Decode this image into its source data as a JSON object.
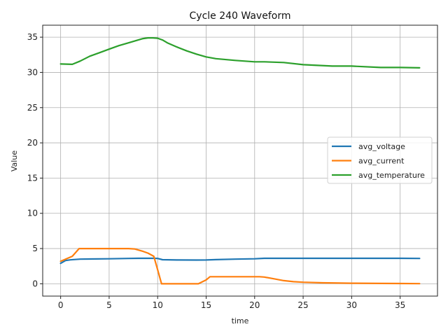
{
  "chart_data": {
    "type": "line",
    "title": "Cycle 240 Waveform",
    "xlabel": "time",
    "ylabel": "Value",
    "xlim": [
      -1.85,
      38.85
    ],
    "ylim": [
      -1.75,
      36.7
    ],
    "xticks": [
      0,
      5,
      10,
      15,
      20,
      25,
      30,
      35
    ],
    "yticks": [
      0,
      5,
      10,
      15,
      20,
      25,
      30,
      35
    ],
    "grid": true,
    "legend_position": "center-right",
    "series": [
      {
        "name": "avg_voltage",
        "color": "#1f77b4",
        "x": [
          0,
          0.5,
          1,
          2,
          3,
          5,
          7,
          8,
          9,
          9.6,
          10,
          10.5,
          12,
          14,
          15,
          16,
          18,
          20,
          21,
          23,
          25,
          28,
          30,
          33,
          35,
          37
        ],
        "y": [
          2.9,
          3.3,
          3.4,
          3.5,
          3.52,
          3.55,
          3.6,
          3.62,
          3.62,
          3.62,
          3.6,
          3.42,
          3.38,
          3.37,
          3.38,
          3.43,
          3.5,
          3.55,
          3.62,
          3.62,
          3.62,
          3.62,
          3.62,
          3.62,
          3.62,
          3.6
        ]
      },
      {
        "name": "avg_current",
        "color": "#ff7f0e",
        "x": [
          0,
          0.5,
          1.2,
          1.9,
          3,
          5,
          7,
          7.6,
          8.5,
          9,
          9.6,
          10,
          10.4,
          12,
          14.2,
          15,
          15.4,
          17,
          18.5,
          20.5,
          21,
          22,
          23,
          24,
          25,
          27,
          30,
          33,
          35,
          37
        ],
        "y": [
          3.2,
          3.5,
          3.9,
          5.0,
          5.0,
          5.0,
          5.0,
          4.95,
          4.6,
          4.35,
          3.9,
          2.0,
          0.0,
          0.0,
          0.0,
          0.55,
          1.0,
          1.0,
          1.0,
          1.0,
          0.95,
          0.7,
          0.45,
          0.3,
          0.22,
          0.14,
          0.08,
          0.05,
          0.04,
          0.02
        ]
      },
      {
        "name": "avg_temperature",
        "color": "#2ca02c",
        "x": [
          0,
          1.2,
          2,
          3,
          4,
          5,
          6,
          7,
          8,
          8.5,
          9,
          9.5,
          10,
          10.5,
          11,
          12,
          13,
          14,
          15,
          16,
          18,
          20,
          21,
          23,
          25,
          28,
          30,
          33,
          35,
          37
        ],
        "y": [
          31.2,
          31.15,
          31.6,
          32.3,
          32.8,
          33.3,
          33.8,
          34.2,
          34.6,
          34.8,
          34.9,
          34.9,
          34.85,
          34.6,
          34.2,
          33.6,
          33.05,
          32.6,
          32.2,
          31.95,
          31.7,
          31.5,
          31.5,
          31.4,
          31.1,
          30.9,
          30.9,
          30.7,
          30.7,
          30.65
        ]
      }
    ]
  }
}
